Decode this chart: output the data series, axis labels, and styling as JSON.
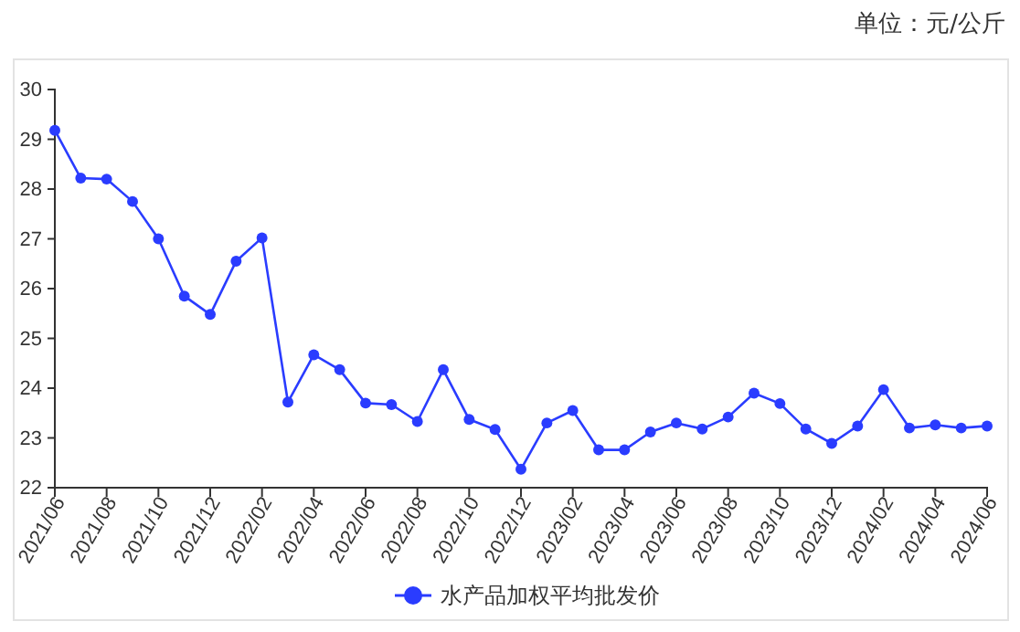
{
  "chart_data": {
    "type": "line",
    "annotations": [
      "单位：元/公斤"
    ],
    "categories": [
      "2021/06",
      null,
      "2021/08",
      null,
      "2021/10",
      null,
      "2021/12",
      null,
      "2022/02",
      null,
      "2022/04",
      null,
      "2022/06",
      null,
      "2022/08",
      null,
      "2022/10",
      null,
      "2022/12",
      null,
      "2023/02",
      null,
      "2023/04",
      null,
      "2023/06",
      null,
      "2023/08",
      null,
      "2023/10",
      null,
      "2023/12",
      null,
      "2024/02",
      null,
      "2024/04",
      null,
      "2024/06"
    ],
    "series": [
      {
        "name": "水产品加权平均批发价",
        "color": "#2a3cff",
        "values": [
          29.18,
          28.22,
          28.2,
          27.75,
          27.0,
          25.85,
          25.48,
          26.55,
          27.02,
          23.72,
          24.67,
          24.37,
          23.7,
          23.67,
          23.33,
          24.37,
          23.37,
          23.17,
          22.37,
          23.3,
          23.55,
          22.76,
          22.76,
          23.12,
          23.3,
          23.18,
          23.42,
          23.9,
          23.69,
          23.18,
          22.89,
          23.24,
          23.97,
          23.2,
          23.26,
          23.2,
          23.24
        ]
      }
    ],
    "ylim": [
      22,
      30
    ],
    "yticks": [
      22,
      23,
      24,
      25,
      26,
      27,
      28,
      29,
      30
    ],
    "grid": false,
    "legend": "bottom",
    "marker": "circle",
    "line_style": "solid"
  }
}
